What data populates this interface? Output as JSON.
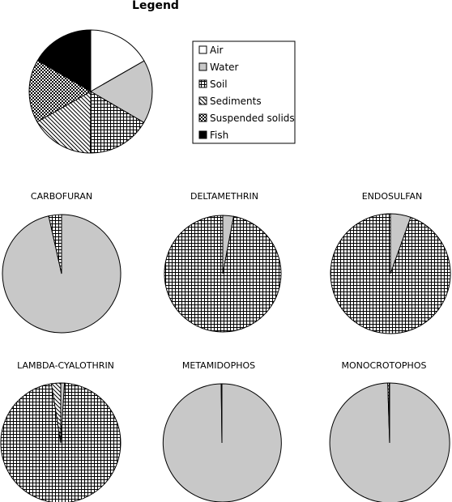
{
  "legend": {
    "title": "Legend",
    "items": [
      {
        "label": "Air",
        "pattern": "white"
      },
      {
        "label": "Water",
        "pattern": "lightgray"
      },
      {
        "label": "Soil",
        "pattern": "grid"
      },
      {
        "label": "Sediments",
        "pattern": "diagonal"
      },
      {
        "label": "Suspended solids",
        "pattern": "checker"
      },
      {
        "label": "Fish",
        "pattern": "black"
      }
    ]
  },
  "colors": {
    "air": "#ffffff",
    "water": "#c8c8c8",
    "fish": "#000000",
    "outline": "#000000"
  },
  "chart_data": [
    {
      "type": "pie",
      "title": "Legend",
      "labels": [
        "Air",
        "Water",
        "Soil",
        "Sediments",
        "Suspended solids",
        "Fish"
      ],
      "values": [
        16.7,
        16.7,
        16.7,
        16.7,
        16.6,
        16.6
      ]
    },
    {
      "type": "pie",
      "title": "CARBOFURAN",
      "labels": [
        "Air",
        "Water",
        "Soil",
        "Sediments",
        "Suspended solids",
        "Fish"
      ],
      "values": [
        0,
        96.5,
        3.5,
        0,
        0,
        0
      ]
    },
    {
      "type": "pie",
      "title": "DELTAMETHRIN",
      "labels": [
        "Air",
        "Water",
        "Soil",
        "Sediments",
        "Suspended solids",
        "Fish"
      ],
      "values": [
        0,
        3.0,
        97.0,
        0,
        0,
        0
      ]
    },
    {
      "type": "pie",
      "title": "ENDOSULFAN",
      "labels": [
        "Air",
        "Water",
        "Soil",
        "Sediments",
        "Suspended solids",
        "Fish"
      ],
      "values": [
        0,
        5.5,
        94.5,
        0,
        0,
        0
      ]
    },
    {
      "type": "pie",
      "title": "LAMBDA-CYALOTHRIN",
      "labels": [
        "Air",
        "Water",
        "Soil",
        "Sediments",
        "Suspended solids",
        "Fish"
      ],
      "values": [
        0,
        1.0,
        96.5,
        2.5,
        0,
        0
      ]
    },
    {
      "type": "pie",
      "title": "METAMIDOPHOS",
      "labels": [
        "Air",
        "Water",
        "Soil",
        "Sediments",
        "Suspended solids",
        "Fish"
      ],
      "values": [
        0,
        99.8,
        0.2,
        0,
        0,
        0
      ]
    },
    {
      "type": "pie",
      "title": "MONOCROTOPHOS",
      "labels": [
        "Air",
        "Water",
        "Soil",
        "Sediments",
        "Suspended solids",
        "Fish"
      ],
      "values": [
        0,
        99.5,
        0.5,
        0,
        0,
        0
      ]
    }
  ]
}
